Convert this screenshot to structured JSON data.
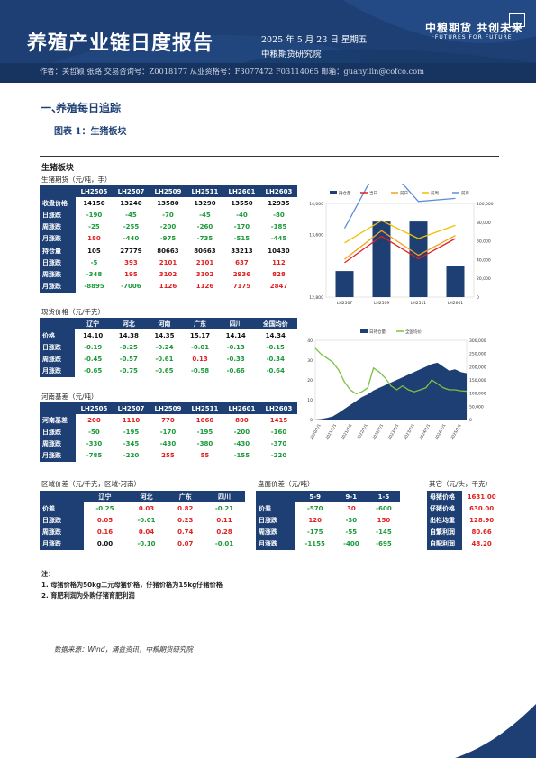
{
  "header": {
    "title": "养殖产业链日度报告",
    "date": "2025 年 5 月 23 日 星期五",
    "institute": "中粮期货研究院",
    "brand": "中粮期货  共创未来",
    "brand_en": "·FUTURES FOR FUTURE·",
    "authors": "作者：关哲颖  张路  交易咨询号：Z0018177 从业资格号：F3077472 F03114065  邮箱：guanyilin@cofco.com"
  },
  "section": {
    "num": "一、",
    "title": "养殖每日追踪"
  },
  "figure": {
    "title": "图表 1：生猪板块"
  },
  "panel_title": "生猪板块",
  "futures": {
    "subtitle": "生猪期货（元/吨，手）",
    "columns": [
      "",
      "LH2505",
      "LH2507",
      "LH2509",
      "LH2511",
      "LH2601",
      "LH2603"
    ],
    "rows": [
      {
        "label": "收盘价格",
        "values": [
          "14150",
          "13240",
          "13580",
          "13290",
          "13550",
          "12935"
        ],
        "colors": [
          "blk",
          "blk",
          "blk",
          "blk",
          "blk",
          "blk"
        ]
      },
      {
        "label": "日涨跌",
        "values": [
          "-190",
          "-45",
          "-70",
          "-45",
          "-40",
          "-80"
        ],
        "colors": [
          "grn",
          "grn",
          "grn",
          "grn",
          "grn",
          "grn"
        ]
      },
      {
        "label": "周涨跌",
        "values": [
          "-25",
          "-255",
          "-200",
          "-260",
          "-170",
          "-185"
        ],
        "colors": [
          "grn",
          "grn",
          "grn",
          "grn",
          "grn",
          "grn"
        ]
      },
      {
        "label": "月涨跌",
        "values": [
          "180",
          "-440",
          "-975",
          "-735",
          "-515",
          "-445"
        ],
        "colors": [
          "red",
          "grn",
          "grn",
          "grn",
          "grn",
          "grn"
        ]
      },
      {
        "label": "持仓量",
        "values": [
          "105",
          "27779",
          "80663",
          "80663",
          "33213",
          "10430"
        ],
        "colors": [
          "blk",
          "blk",
          "blk",
          "blk",
          "blk",
          "blk"
        ]
      },
      {
        "label": "日涨跌",
        "values": [
          "-5",
          "393",
          "2101",
          "2101",
          "637",
          "112"
        ],
        "colors": [
          "grn",
          "red",
          "red",
          "red",
          "red",
          "red"
        ]
      },
      {
        "label": "周涨跌",
        "values": [
          "-348",
          "195",
          "3102",
          "3102",
          "2936",
          "828"
        ],
        "colors": [
          "grn",
          "red",
          "red",
          "red",
          "red",
          "red"
        ]
      },
      {
        "label": "月涨跌",
        "values": [
          "-8895",
          "-7006",
          "1126",
          "1126",
          "7175",
          "2847"
        ],
        "colors": [
          "grn",
          "grn",
          "red",
          "red",
          "red",
          "red"
        ]
      }
    ]
  },
  "spot": {
    "subtitle": "现货价格（元/千克）",
    "columns": [
      "",
      "辽宁",
      "河北",
      "河南",
      "广东",
      "四川",
      "全国均价"
    ],
    "rows": [
      {
        "label": "价格",
        "values": [
          "14.10",
          "14.38",
          "14.35",
          "15.17",
          "14.14",
          "14.34"
        ],
        "colors": [
          "blk",
          "blk",
          "blk",
          "blk",
          "blk",
          "blk"
        ]
      },
      {
        "label": "日涨跌",
        "values": [
          "-0.19",
          "-0.25",
          "-0.24",
          "-0.01",
          "-0.13",
          "-0.15"
        ],
        "colors": [
          "grn",
          "grn",
          "grn",
          "grn",
          "grn",
          "grn"
        ]
      },
      {
        "label": "周涨跌",
        "values": [
          "-0.45",
          "-0.57",
          "-0.61",
          "0.13",
          "-0.33",
          "-0.34"
        ],
        "colors": [
          "grn",
          "grn",
          "grn",
          "red",
          "grn",
          "grn"
        ]
      },
      {
        "label": "月涨跌",
        "values": [
          "-0.65",
          "-0.75",
          "-0.65",
          "-0.58",
          "-0.66",
          "-0.64"
        ],
        "colors": [
          "grn",
          "grn",
          "grn",
          "grn",
          "grn",
          "grn"
        ]
      }
    ]
  },
  "basis": {
    "subtitle": "河南基差（元/吨）",
    "columns": [
      "",
      "LH2505",
      "LH2507",
      "LH2509",
      "LH2511",
      "LH2601",
      "LH2603"
    ],
    "rows": [
      {
        "label": "河南基差",
        "values": [
          "200",
          "1110",
          "770",
          "1060",
          "800",
          "1415"
        ],
        "colors": [
          "red",
          "red",
          "red",
          "red",
          "red",
          "red"
        ]
      },
      {
        "label": "日涨跌",
        "values": [
          "-50",
          "-195",
          "-170",
          "-195",
          "-200",
          "-160"
        ],
        "colors": [
          "grn",
          "grn",
          "grn",
          "grn",
          "grn",
          "grn"
        ]
      },
      {
        "label": "周涨跌",
        "values": [
          "-330",
          "-345",
          "-430",
          "-380",
          "-430",
          "-370"
        ],
        "colors": [
          "grn",
          "grn",
          "grn",
          "grn",
          "grn",
          "grn"
        ]
      },
      {
        "label": "月涨跌",
        "values": [
          "-785",
          "-220",
          "255",
          "55",
          "-155",
          "-220"
        ],
        "colors": [
          "grn",
          "grn",
          "red",
          "red",
          "grn",
          "grn"
        ]
      }
    ]
  },
  "region": {
    "subtitle": "区域价差（元/千克，区域-河南）",
    "columns": [
      "",
      "辽宁",
      "河北",
      "广东",
      "四川"
    ],
    "rows": [
      {
        "label": "价差",
        "values": [
          "-0.25",
          "0.03",
          "0.82",
          "-0.21"
        ],
        "colors": [
          "grn",
          "red",
          "red",
          "grn"
        ]
      },
      {
        "label": "日涨跌",
        "values": [
          "0.05",
          "-0.01",
          "0.23",
          "0.11"
        ],
        "colors": [
          "red",
          "grn",
          "red",
          "red"
        ]
      },
      {
        "label": "周涨跌",
        "values": [
          "0.16",
          "0.04",
          "0.74",
          "0.28"
        ],
        "colors": [
          "red",
          "red",
          "red",
          "red"
        ]
      },
      {
        "label": "月涨跌",
        "values": [
          "0.00",
          "-0.10",
          "0.07",
          "-0.01"
        ],
        "colors": [
          "blk",
          "grn",
          "red",
          "grn"
        ]
      }
    ]
  },
  "spread": {
    "subtitle": "盘面价差（元/吨）",
    "columns": [
      "",
      "5-9",
      "9-1",
      "1-5"
    ],
    "rows": [
      {
        "label": "价差",
        "values": [
          "-570",
          "30",
          "-600"
        ],
        "colors": [
          "grn",
          "red",
          "grn"
        ]
      },
      {
        "label": "日涨跌",
        "values": [
          "120",
          "-30",
          "150"
        ],
        "colors": [
          "red",
          "grn",
          "red"
        ]
      },
      {
        "label": "周涨跌",
        "values": [
          "-175",
          "-55",
          "-145"
        ],
        "colors": [
          "grn",
          "grn",
          "grn"
        ]
      },
      {
        "label": "月涨跌",
        "values": [
          "-1155",
          "-400",
          "-695"
        ],
        "colors": [
          "grn",
          "grn",
          "grn"
        ]
      }
    ]
  },
  "other": {
    "subtitle": "其它（元/头，千克）",
    "rows": [
      {
        "label": "母猪价格",
        "value": "1631.00"
      },
      {
        "label": "仔猪价格",
        "value": "630.00"
      },
      {
        "label": "出栏均重",
        "value": "128.90"
      },
      {
        "label": "自繁利润",
        "value": "80.66"
      },
      {
        "label": "自配利润",
        "value": "48.20"
      }
    ]
  },
  "notes": {
    "title": "注：",
    "lines": [
      "1. 母猪价格为50kg二元母猪价格，仔猪价格为15kg仔猪价格",
      "2. 育肥利润为外购仔猪育肥利润"
    ]
  },
  "source": "数据来源：Wind，涌益资讯，中粮期货研究院",
  "chart_data": [
    {
      "type": "bar",
      "title": "",
      "categories": [
        "LH2507",
        "LH2509",
        "LH2511",
        "LH2601"
      ],
      "legend": [
        "持仓量",
        "当日",
        "前日",
        "前周",
        "前月"
      ],
      "legend_position": "top",
      "ylim_left": [
        12800,
        14000
      ],
      "yticks_left": [
        "12,800",
        "13,600",
        "14,000"
      ],
      "ylim_right": [
        0,
        100000
      ],
      "yticks_right": [
        "0",
        "20,000",
        "40,000",
        "60,000",
        "80,000",
        "100,000"
      ],
      "series": [
        {
          "name": "持仓量",
          "kind": "bar",
          "axis": "right",
          "color": "#1d3f74",
          "values": [
            27779,
            80663,
            80663,
            33213
          ]
        },
        {
          "name": "当日",
          "kind": "line",
          "color": "#e02020",
          "values": [
            13240,
            13580,
            13290,
            13550
          ]
        },
        {
          "name": "前日",
          "kind": "line",
          "color": "#f4a020",
          "values": [
            13285,
            13650,
            13335,
            13590
          ]
        },
        {
          "name": "前周",
          "kind": "line",
          "color": "#f0c000",
          "values": [
            13495,
            13780,
            13550,
            13720
          ]
        },
        {
          "name": "前月",
          "kind": "line",
          "color": "#5a8fd8",
          "values": [
            13680,
            14555,
            14025,
            14065
          ]
        }
      ]
    },
    {
      "type": "area",
      "title": "",
      "legend": [
        "日持仓量",
        "全国均价"
      ],
      "legend_position": "top",
      "x_ticks": [
        "2020/1/1",
        "2021/1/1",
        "2021/7/1",
        "2022/1/1",
        "2022/7/1",
        "2023/1/1",
        "2023/7/1",
        "2024/1/1",
        "2024/7/1",
        "2025/1/1"
      ],
      "ylim_left": [
        0,
        40
      ],
      "yticks_left": [
        "0",
        "10",
        "20",
        "30",
        "40"
      ],
      "ylim_right": [
        0,
        300000
      ],
      "yticks_right": [
        "0",
        "50,000",
        "100,000",
        "150,000",
        "200,000",
        "250,000",
        "300,000"
      ],
      "series": [
        {
          "name": "日持仓量",
          "kind": "area",
          "axis": "right",
          "color": "#1d3f74",
          "values": [
            0,
            2000,
            6000,
            12000,
            25000,
            40000,
            55000,
            70000,
            85000,
            95000,
            110000,
            120000,
            130000,
            140000,
            150000,
            160000,
            170000,
            180000,
            190000,
            200000,
            210000,
            215000,
            200000,
            185000,
            190000,
            180000,
            175000
          ]
        },
        {
          "name": "全国均价",
          "kind": "line",
          "color": "#7ac143",
          "values": [
            36,
            33,
            31,
            29,
            25,
            19,
            15,
            13,
            14,
            16,
            26,
            24,
            21,
            17,
            15,
            17,
            15,
            14,
            15,
            16,
            20,
            18,
            16,
            15,
            15,
            14.5,
            14.3
          ]
        }
      ]
    }
  ]
}
